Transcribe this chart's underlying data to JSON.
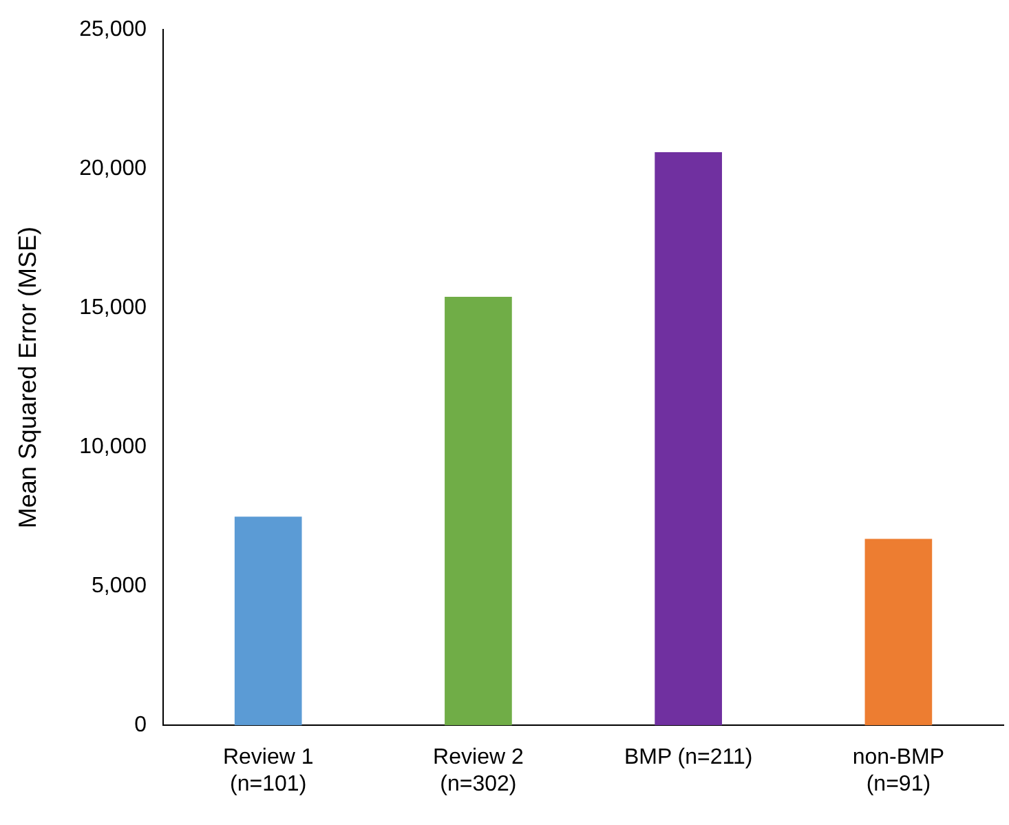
{
  "chart_data": {
    "type": "bar",
    "ylabel": "Mean Squared Error (MSE)",
    "categories": [
      "Review 1 (n=101)",
      "Review 2 (n=302)",
      "BMP (n=211)",
      "non-BMP (n=91)"
    ],
    "values": [
      7500,
      15400,
      20600,
      6700
    ],
    "colors": [
      "#5b9bd5",
      "#70ad47",
      "#7030a0",
      "#ed7d31"
    ],
    "ylim": [
      0,
      25000
    ],
    "yticks": [
      0,
      {
        "value": 5000,
        "label": "5,000"
      },
      {
        "value": 10000,
        "label": "10,000"
      },
      {
        "value": 15000,
        "label": "15,000"
      },
      {
        "value": 20000,
        "label": "20,000"
      },
      {
        "value": 25000,
        "label": "25,000"
      }
    ],
    "grid": false,
    "legend": false
  }
}
